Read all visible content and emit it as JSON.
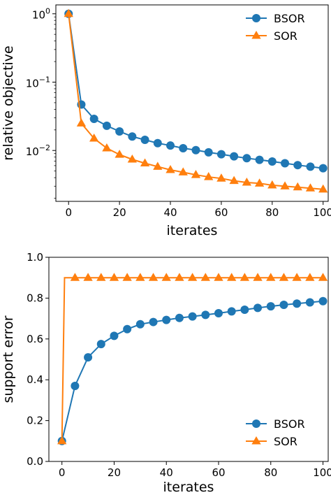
{
  "colors": {
    "bsor": "#1f77b4",
    "sor": "#ff7f0e"
  },
  "chart_data": [
    {
      "type": "line",
      "xlabel": "iterates",
      "ylabel": "relative objective",
      "yscale": "log",
      "xlim": [
        -5,
        102
      ],
      "ylim": [
        0.0018,
        1.35
      ],
      "x_ticks": [
        0,
        20,
        40,
        60,
        80,
        100
      ],
      "x_tick_labels": [
        "0",
        "20",
        "40",
        "60",
        "80",
        "100"
      ],
      "y_ticks": [
        1,
        0.1,
        0.01
      ],
      "y_tick_labels": [
        {
          "base": "10",
          "exp": "0"
        },
        {
          "base": "10",
          "exp": "−1"
        },
        {
          "base": "10",
          "exp": "−2"
        }
      ],
      "legend": "top-right",
      "series": [
        {
          "name": "BSOR",
          "marker": "circle",
          "color": "#1f77b4",
          "x": [
            0,
            5,
            10,
            15,
            20,
            25,
            30,
            35,
            40,
            45,
            50,
            55,
            60,
            65,
            70,
            75,
            80,
            85,
            90,
            95,
            100
          ],
          "y": [
            1.0,
            0.047,
            0.029,
            0.023,
            0.019,
            0.016,
            0.0143,
            0.0128,
            0.0118,
            0.0108,
            0.0101,
            0.0094,
            0.0088,
            0.0082,
            0.0077,
            0.0073,
            0.0069,
            0.0065,
            0.0061,
            0.0058,
            0.0055
          ]
        },
        {
          "name": "SOR",
          "marker": "triangle",
          "color": "#ff7f0e",
          "x": [
            0,
            5,
            10,
            15,
            20,
            25,
            30,
            35,
            40,
            45,
            50,
            55,
            60,
            65,
            70,
            75,
            80,
            85,
            90,
            95,
            100
          ],
          "y": [
            1.0,
            0.025,
            0.015,
            0.0108,
            0.0087,
            0.0074,
            0.0065,
            0.0058,
            0.0052,
            0.0048,
            0.0044,
            0.0041,
            0.0039,
            0.0036,
            0.0034,
            0.0033,
            0.0031,
            0.003,
            0.0029,
            0.0028,
            0.0027
          ]
        }
      ]
    },
    {
      "type": "line",
      "xlabel": "iterates",
      "ylabel": "support error",
      "yscale": "linear",
      "xlim": [
        -5,
        102
      ],
      "ylim": [
        0.0,
        1.0
      ],
      "x_ticks": [
        0,
        20,
        40,
        60,
        80,
        100
      ],
      "x_tick_labels": [
        "0",
        "20",
        "40",
        "60",
        "80",
        "100"
      ],
      "y_ticks": [
        0.0,
        0.2,
        0.4,
        0.6,
        0.8,
        1.0
      ],
      "y_tick_labels": [
        "0.0",
        "0.2",
        "0.4",
        "0.6",
        "0.8",
        "1.0"
      ],
      "legend": "bottom-right",
      "series": [
        {
          "name": "BSOR",
          "marker": "circle",
          "color": "#1f77b4",
          "x": [
            0,
            5,
            10,
            15,
            20,
            25,
            30,
            35,
            40,
            45,
            50,
            55,
            60,
            65,
            70,
            75,
            80,
            85,
            90,
            95,
            100
          ],
          "y": [
            0.1,
            0.37,
            0.51,
            0.575,
            0.615,
            0.648,
            0.672,
            0.683,
            0.693,
            0.703,
            0.71,
            0.718,
            0.726,
            0.735,
            0.743,
            0.752,
            0.76,
            0.767,
            0.773,
            0.779,
            0.785
          ]
        },
        {
          "name": "SOR",
          "marker": "triangle",
          "color": "#ff7f0e",
          "x": [
            0,
            1,
            5,
            10,
            15,
            20,
            25,
            30,
            35,
            40,
            45,
            50,
            55,
            60,
            65,
            70,
            75,
            80,
            85,
            90,
            95,
            100
          ],
          "y": [
            0.1,
            0.9,
            0.9,
            0.9,
            0.9,
            0.9,
            0.9,
            0.9,
            0.9,
            0.9,
            0.9,
            0.9,
            0.9,
            0.9,
            0.9,
            0.9,
            0.9,
            0.9,
            0.9,
            0.9,
            0.9,
            0.9
          ],
          "marker_x": [
            0,
            5,
            10,
            15,
            20,
            25,
            30,
            35,
            40,
            45,
            50,
            55,
            60,
            65,
            70,
            75,
            80,
            85,
            90,
            95,
            100
          ]
        }
      ]
    }
  ]
}
